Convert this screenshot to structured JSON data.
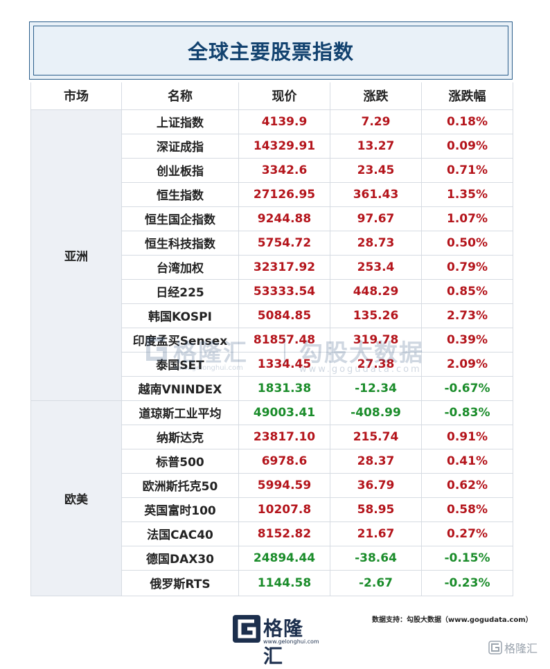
{
  "title": "全球主要股票指数",
  "headers": {
    "market": "市场",
    "name": "名称",
    "price": "现价",
    "change": "涨跌",
    "change_pct": "涨跌幅"
  },
  "regions": {
    "asia": "亚洲",
    "euam": "欧美"
  },
  "rows": [
    {
      "name": "上证指数",
      "price": "4139.9",
      "change": "7.29",
      "pct": "0.18%",
      "dir": "up"
    },
    {
      "name": "深证成指",
      "price": "14329.91",
      "change": "13.27",
      "pct": "0.09%",
      "dir": "up"
    },
    {
      "name": "创业板指",
      "price": "3342.6",
      "change": "23.45",
      "pct": "0.71%",
      "dir": "up"
    },
    {
      "name": "恒生指数",
      "price": "27126.95",
      "change": "361.43",
      "pct": "1.35%",
      "dir": "up"
    },
    {
      "name": "恒生国企指数",
      "price": "9244.88",
      "change": "97.67",
      "pct": "1.07%",
      "dir": "up"
    },
    {
      "name": "恒生科技指数",
      "price": "5754.72",
      "change": "28.73",
      "pct": "0.50%",
      "dir": "up"
    },
    {
      "name": "台湾加权",
      "price": "32317.92",
      "change": "253.4",
      "pct": "0.79%",
      "dir": "up"
    },
    {
      "name": "日经225",
      "price": "53333.54",
      "change": "448.29",
      "pct": "0.85%",
      "dir": "up"
    },
    {
      "name": "韩国KOSPI",
      "price": "5084.85",
      "change": "135.26",
      "pct": "2.73%",
      "dir": "up"
    },
    {
      "name": "印度孟买Sensex",
      "price": "81857.48",
      "change": "319.78",
      "pct": "0.39%",
      "dir": "up"
    },
    {
      "name": "泰国SET",
      "price": "1334.45",
      "change": "27.38",
      "pct": "2.09%",
      "dir": "up"
    },
    {
      "name": "越南VNINDEX",
      "price": "1831.38",
      "change": "-12.34",
      "pct": "-0.67%",
      "dir": "down"
    },
    {
      "name": "道琼斯工业平均",
      "price": "49003.41",
      "change": "-408.99",
      "pct": "-0.83%",
      "dir": "down"
    },
    {
      "name": "纳斯达克",
      "price": "23817.10",
      "change": "215.74",
      "pct": "0.91%",
      "dir": "up"
    },
    {
      "name": "标普500",
      "price": "6978.6",
      "change": "28.37",
      "pct": "0.41%",
      "dir": "up"
    },
    {
      "name": "欧洲斯托克50",
      "price": "5994.59",
      "change": "36.79",
      "pct": "0.62%",
      "dir": "up"
    },
    {
      "name": "英国富时100",
      "price": "10207.8",
      "change": "58.95",
      "pct": "0.58%",
      "dir": "up"
    },
    {
      "name": "法国CAC40",
      "price": "8152.82",
      "change": "21.67",
      "pct": "0.27%",
      "dir": "up"
    },
    {
      "name": "德国DAX30",
      "price": "24894.44",
      "change": "-38.64",
      "pct": "-0.15%",
      "dir": "down"
    },
    {
      "name": "俄罗斯RTS",
      "price": "1144.58",
      "change": "-2.67",
      "pct": "-0.23%",
      "dir": "down"
    }
  ],
  "watermark": {
    "brand": "格隆汇",
    "brand_url": "www.gelonghui.com",
    "gogu": "勾股大数据",
    "gogu_url": "www.gogudata.com"
  },
  "footer": {
    "brand": "格隆汇",
    "brand_url": "www.gelonghui.com",
    "source": "数据支持：勾股大数据（www.gogudata.com）",
    "corner": "格隆汇"
  },
  "colors": {
    "up": "#b4141b",
    "down": "#1a8c2a",
    "title": "#12426f",
    "region_bg": "#edf0f5"
  }
}
